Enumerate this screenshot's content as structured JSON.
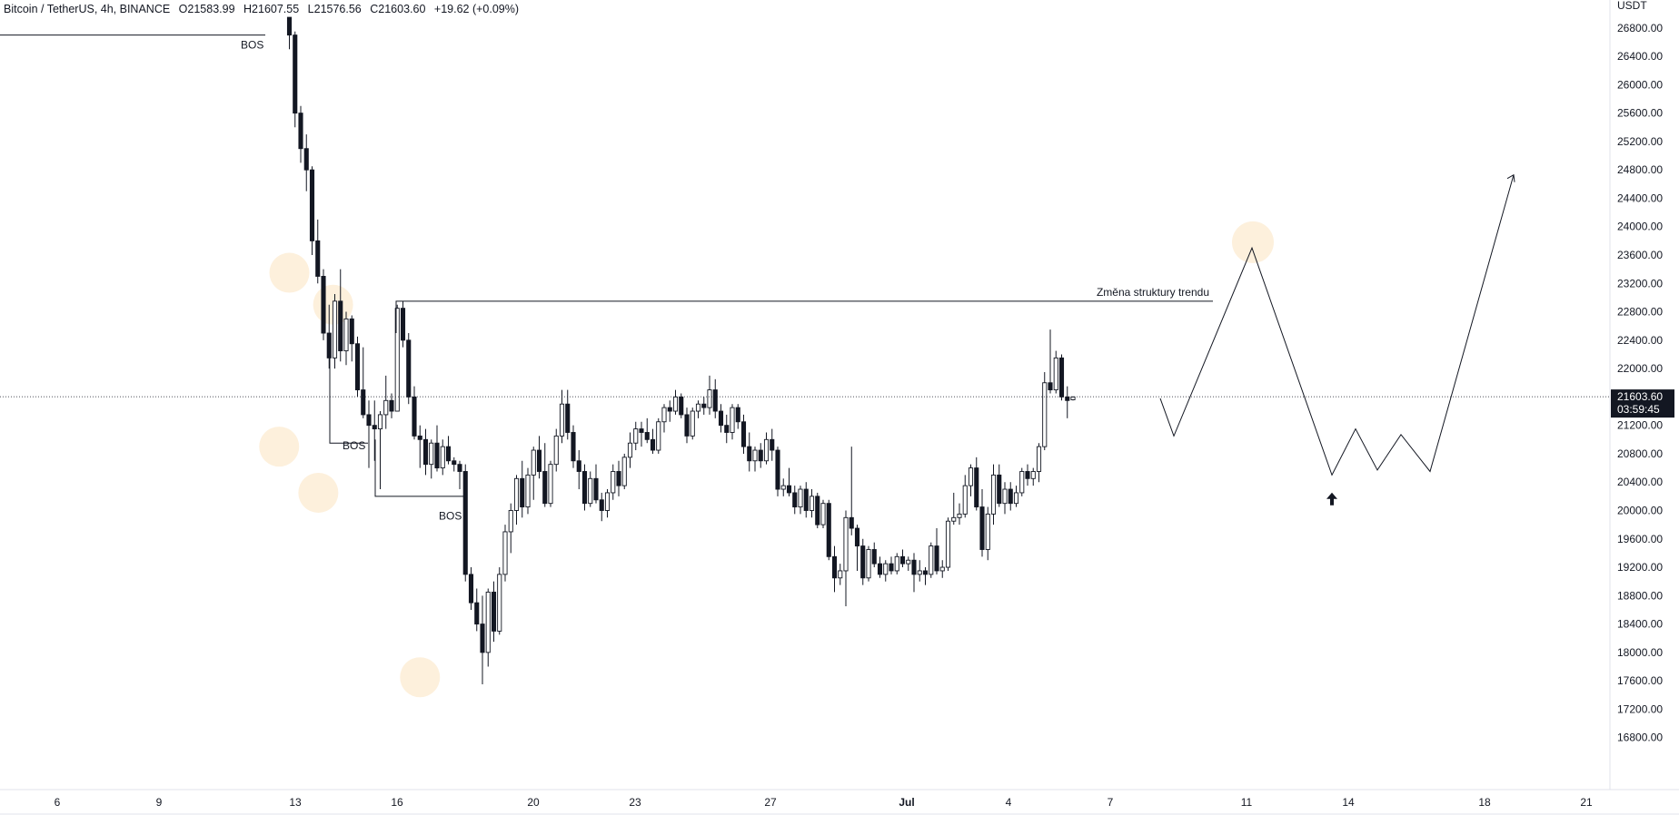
{
  "header": {
    "symbol": "Bitcoin / TetherUS, 4h, BINANCE",
    "open": "O21583.99",
    "high": "H21607.55",
    "low": "L21576.56",
    "close": "C21603.60",
    "change": "+19.62 (+0.09%)"
  },
  "chart_data": {
    "type": "candlestick",
    "currency_label": "USDT",
    "ylim": [
      16400,
      26950
    ],
    "y_ticks": [
      "26800.00",
      "26400.00",
      "26000.00",
      "25600.00",
      "25200.00",
      "24800.00",
      "24400.00",
      "24000.00",
      "23600.00",
      "23200.00",
      "22800.00",
      "22400.00",
      "22000.00",
      "21600.00",
      "21200.00",
      "20800.00",
      "20400.00",
      "20000.00",
      "19600.00",
      "19200.00",
      "18800.00",
      "18400.00",
      "18000.00",
      "17600.00",
      "17200.00",
      "16800.00"
    ],
    "x_ticks": [
      "6",
      "9",
      "13",
      "16",
      "20",
      "23",
      "27",
      "Jul",
      "4",
      "7",
      "11",
      "14",
      "18",
      "21"
    ],
    "last_price": "21603.60",
    "countdown": "03:59:45",
    "annotations": {
      "bos_labels": [
        "BOS",
        "BOS",
        "BOS"
      ],
      "trend_change": "Změna struktury trendu"
    },
    "candles": [
      [
        26950,
        26950,
        26500,
        26700
      ],
      [
        26700,
        26750,
        25400,
        25600
      ],
      [
        25600,
        25700,
        24900,
        25100
      ],
      [
        25100,
        25300,
        24500,
        24800
      ],
      [
        24800,
        24850,
        23600,
        23800
      ],
      [
        23800,
        24100,
        23200,
        23300
      ],
      [
        23300,
        23400,
        22400,
        22500
      ],
      [
        22500,
        22900,
        22000,
        22150
      ],
      [
        22150,
        23050,
        22000,
        22950
      ],
      [
        22950,
        23400,
        22100,
        22250
      ],
      [
        22250,
        22800,
        22050,
        22700
      ],
      [
        22700,
        22750,
        22100,
        22350
      ],
      [
        22350,
        22450,
        21600,
        21700
      ],
      [
        21700,
        22300,
        21300,
        21350
      ],
      [
        21350,
        21550,
        20600,
        21200
      ],
      [
        21200,
        21550,
        20700,
        21150
      ],
      [
        21150,
        21400,
        20300,
        21350
      ],
      [
        21350,
        21900,
        21150,
        21550
      ],
      [
        21550,
        21650,
        21300,
        21400
      ],
      [
        21400,
        22900,
        21400,
        22850
      ],
      [
        22850,
        22950,
        22300,
        22400
      ],
      [
        22400,
        22500,
        21500,
        21600
      ],
      [
        21600,
        21750,
        21000,
        21050
      ],
      [
        21050,
        21200,
        20600,
        21000
      ],
      [
        21000,
        21150,
        20500,
        20650
      ],
      [
        20650,
        21000,
        20450,
        20950
      ],
      [
        20950,
        21200,
        20550,
        20600
      ],
      [
        20600,
        21000,
        20500,
        20900
      ],
      [
        20900,
        21050,
        20650,
        20700
      ],
      [
        20700,
        20750,
        20550,
        20650
      ],
      [
        20650,
        20700,
        20300,
        20550
      ],
      [
        20550,
        20650,
        19000,
        19100
      ],
      [
        19100,
        19200,
        18600,
        18700
      ],
      [
        18700,
        18900,
        18300,
        18400
      ],
      [
        18400,
        18800,
        17550,
        18000
      ],
      [
        18000,
        18900,
        17800,
        18850
      ],
      [
        18850,
        19000,
        18150,
        18300
      ],
      [
        18300,
        19200,
        18250,
        19100
      ],
      [
        19100,
        19800,
        19000,
        19700
      ],
      [
        19700,
        20100,
        19400,
        20000
      ],
      [
        20000,
        20500,
        19800,
        20450
      ],
      [
        20450,
        20700,
        19900,
        20050
      ],
      [
        20050,
        20600,
        19950,
        20500
      ],
      [
        20500,
        20900,
        20150,
        20850
      ],
      [
        20850,
        21050,
        20450,
        20550
      ],
      [
        20550,
        20950,
        20050,
        20100
      ],
      [
        20100,
        20700,
        20050,
        20650
      ],
      [
        20650,
        21150,
        20550,
        21050
      ],
      [
        21050,
        21700,
        20950,
        21500
      ],
      [
        21500,
        21700,
        21000,
        21100
      ],
      [
        21100,
        21200,
        20600,
        20700
      ],
      [
        20700,
        20850,
        20300,
        20550
      ],
      [
        20550,
        20650,
        20000,
        20100
      ],
      [
        20100,
        20550,
        20050,
        20450
      ],
      [
        20450,
        20650,
        20100,
        20150
      ],
      [
        20150,
        20250,
        19850,
        20000
      ],
      [
        20000,
        20300,
        19900,
        20250
      ],
      [
        20250,
        20650,
        20150,
        20550
      ],
      [
        20550,
        20700,
        20200,
        20350
      ],
      [
        20350,
        20800,
        20300,
        20750
      ],
      [
        20750,
        21100,
        20600,
        20950
      ],
      [
        20950,
        21250,
        20850,
        21150
      ],
      [
        21150,
        21250,
        20900,
        21100
      ],
      [
        21100,
        21300,
        20950,
        21000
      ],
      [
        21000,
        21150,
        20800,
        20850
      ],
      [
        20850,
        21300,
        20800,
        21250
      ],
      [
        21250,
        21500,
        21100,
        21450
      ],
      [
        21450,
        21550,
        21250,
        21400
      ],
      [
        21400,
        21700,
        21350,
        21600
      ],
      [
        21600,
        21650,
        21300,
        21350
      ],
      [
        21350,
        21450,
        20950,
        21050
      ],
      [
        21050,
        21450,
        21000,
        21400
      ],
      [
        21400,
        21550,
        21300,
        21500
      ],
      [
        21500,
        21600,
        21350,
        21450
      ],
      [
        21450,
        21900,
        21350,
        21700
      ],
      [
        21700,
        21850,
        21300,
        21400
      ],
      [
        21400,
        21500,
        21100,
        21200
      ],
      [
        21200,
        21350,
        20950,
        21100
      ],
      [
        21100,
        21500,
        21000,
        21450
      ],
      [
        21450,
        21500,
        21150,
        21250
      ],
      [
        21250,
        21350,
        20800,
        20900
      ],
      [
        20900,
        21100,
        20550,
        20700
      ],
      [
        20700,
        20900,
        20550,
        20850
      ],
      [
        20850,
        20950,
        20600,
        20700
      ],
      [
        20700,
        21100,
        20650,
        21000
      ],
      [
        21000,
        21150,
        20700,
        20850
      ],
      [
        20850,
        20900,
        20200,
        20300
      ],
      [
        20300,
        20450,
        20200,
        20350
      ],
      [
        20350,
        20600,
        20200,
        20250
      ],
      [
        20250,
        20350,
        19950,
        20050
      ],
      [
        20050,
        20350,
        19950,
        20300
      ],
      [
        20300,
        20400,
        19900,
        20000
      ],
      [
        20000,
        20300,
        19900,
        20200
      ],
      [
        20200,
        20250,
        19750,
        19800
      ],
      [
        19800,
        20150,
        19750,
        20100
      ],
      [
        20100,
        20150,
        19300,
        19350
      ],
      [
        19350,
        19500,
        18850,
        19050
      ],
      [
        19050,
        19250,
        18950,
        19150
      ],
      [
        19150,
        20000,
        18650,
        19900
      ],
      [
        19900,
        20900,
        19650,
        19750
      ],
      [
        19750,
        19800,
        19150,
        19500
      ],
      [
        19500,
        19600,
        18950,
        19050
      ],
      [
        19050,
        19500,
        19000,
        19450
      ],
      [
        19450,
        19550,
        19200,
        19250
      ],
      [
        19250,
        19350,
        19050,
        19100
      ],
      [
        19100,
        19300,
        19000,
        19250
      ],
      [
        19250,
        19350,
        19100,
        19150
      ],
      [
        19150,
        19400,
        19100,
        19350
      ],
      [
        19350,
        19450,
        19200,
        19250
      ],
      [
        19250,
        19350,
        19150,
        19300
      ],
      [
        19300,
        19400,
        18850,
        19100
      ],
      [
        19100,
        19300,
        19000,
        19150
      ],
      [
        19150,
        19200,
        18950,
        19100
      ],
      [
        19100,
        19550,
        19050,
        19500
      ],
      [
        19500,
        19750,
        19100,
        19150
      ],
      [
        19150,
        19300,
        19050,
        19200
      ],
      [
        19200,
        19900,
        19150,
        19850
      ],
      [
        19850,
        20250,
        19800,
        19900
      ],
      [
        19900,
        20100,
        19800,
        19950
      ],
      [
        19950,
        20500,
        19900,
        20350
      ],
      [
        20350,
        20650,
        20200,
        20600
      ],
      [
        20600,
        20750,
        20000,
        20050
      ],
      [
        20050,
        20300,
        19350,
        19450
      ],
      [
        19450,
        20050,
        19300,
        19950
      ],
      [
        19950,
        20650,
        19800,
        20500
      ],
      [
        20500,
        20650,
        20050,
        20100
      ],
      [
        20100,
        20400,
        19950,
        20300
      ],
      [
        20300,
        20400,
        20000,
        20100
      ],
      [
        20100,
        20350,
        20050,
        20250
      ],
      [
        20250,
        20600,
        20200,
        20550
      ],
      [
        20550,
        20650,
        20350,
        20450
      ],
      [
        20450,
        20600,
        20350,
        20550
      ],
      [
        20550,
        20950,
        20400,
        20900
      ],
      [
        20900,
        21950,
        20850,
        21800
      ],
      [
        21800,
        22550,
        21650,
        21700
      ],
      [
        21700,
        22250,
        21650,
        22150
      ],
      [
        22150,
        22200,
        21550,
        21600
      ],
      [
        21600,
        21750,
        21300,
        21550
      ],
      [
        21560,
        21610,
        21550,
        21600
      ]
    ]
  }
}
